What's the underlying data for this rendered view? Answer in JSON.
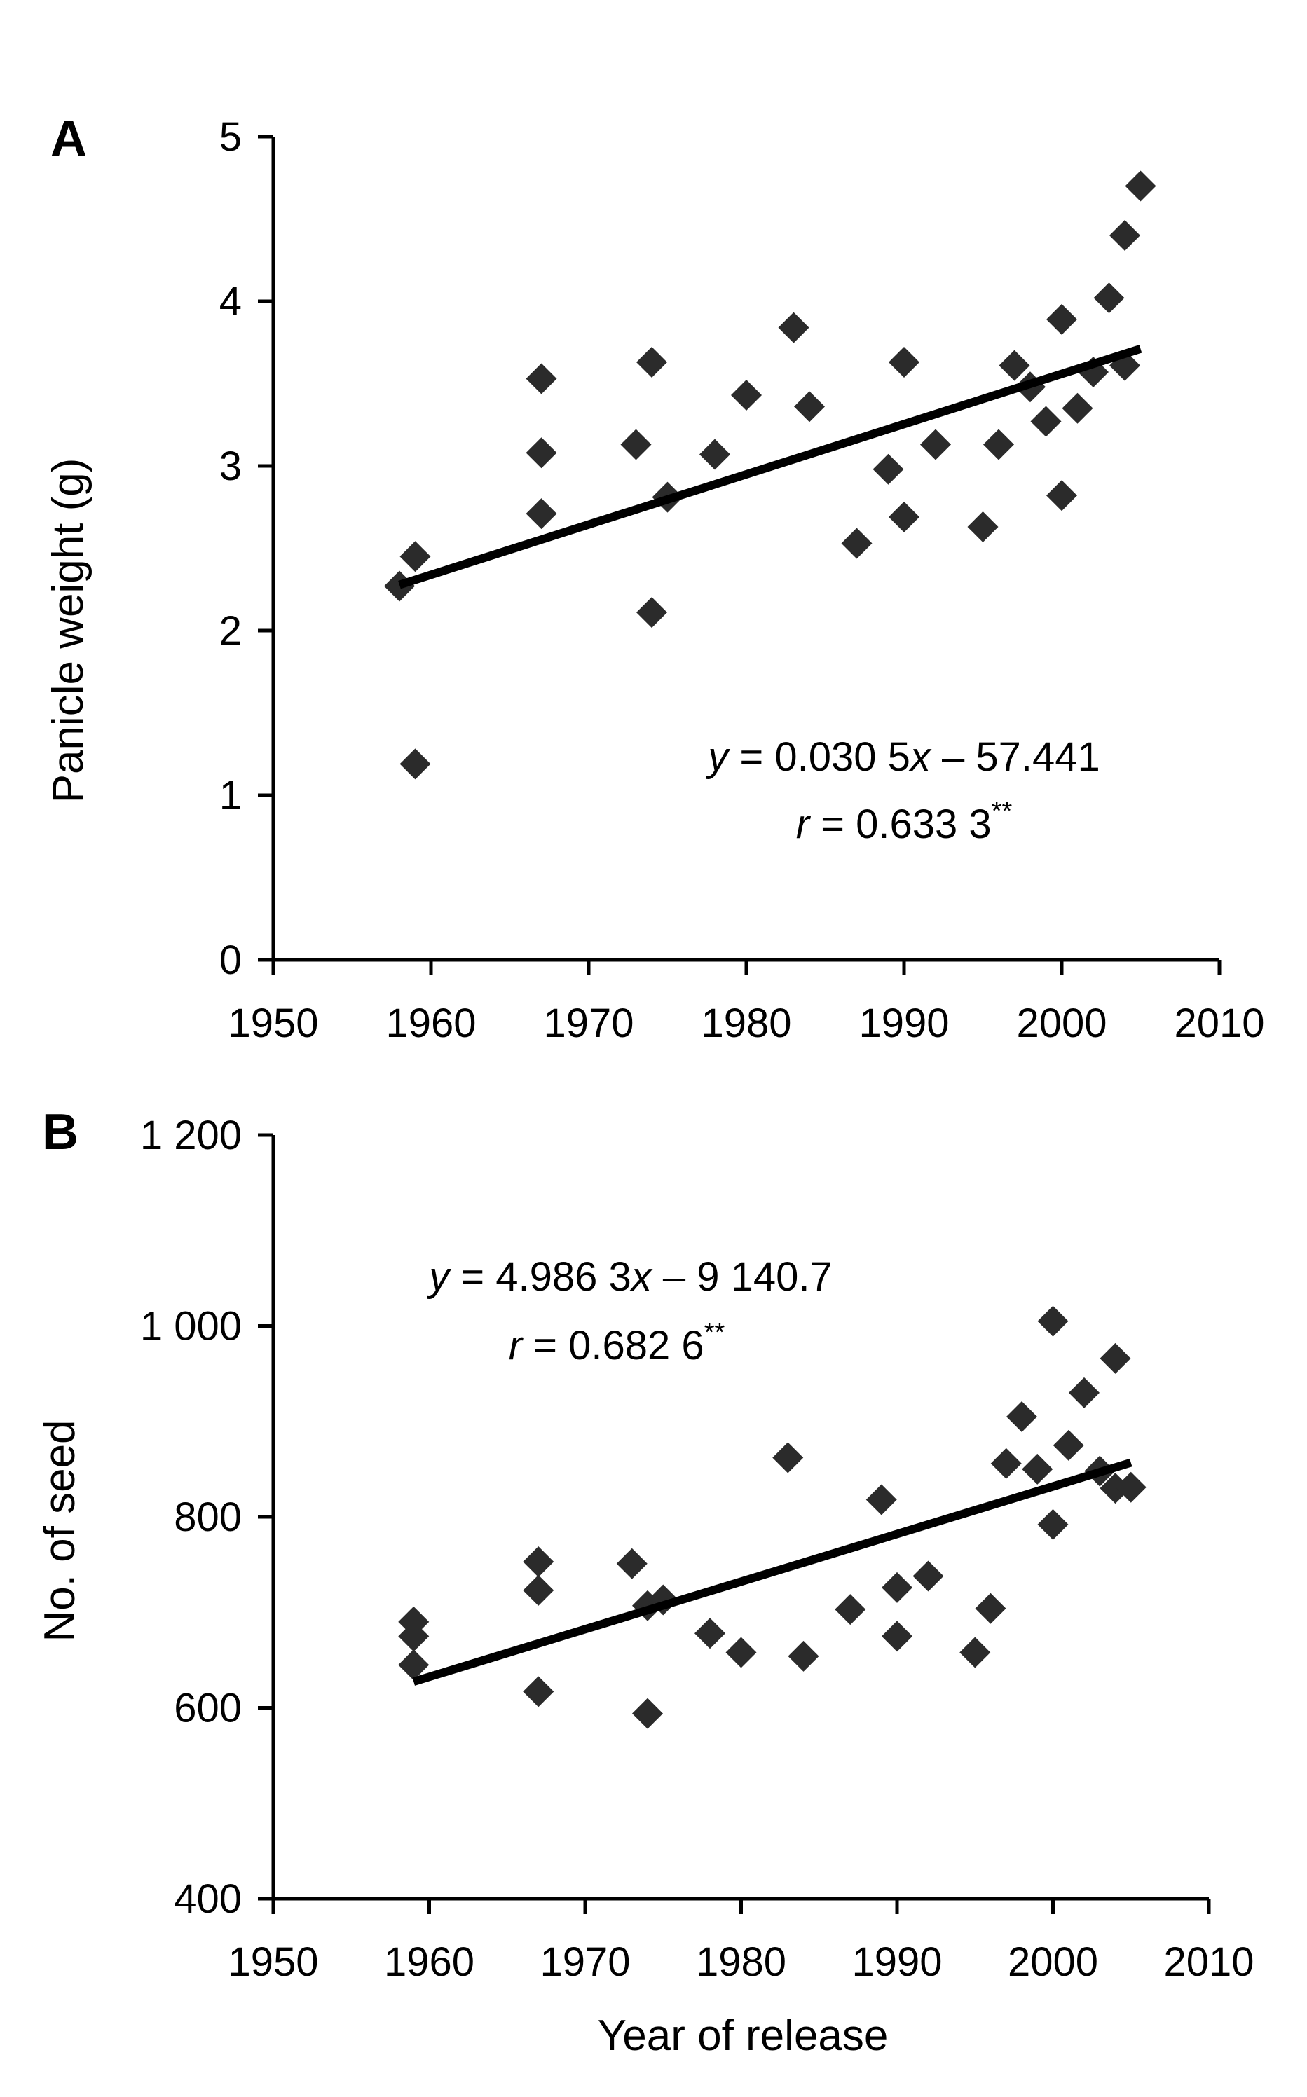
{
  "chart_data": [
    {
      "type": "scatter",
      "panel": "A",
      "title": "",
      "xlabel": "",
      "ylabel": "Panicle weight (g)",
      "xlim": [
        1950,
        2010
      ],
      "ylim": [
        0,
        5
      ],
      "xticks": [
        1950,
        1960,
        1970,
        1980,
        1990,
        2000,
        2010
      ],
      "yticks": [
        0,
        1,
        2,
        3,
        4,
        5
      ],
      "xtick_labels": [
        "1950",
        "1960",
        "1970",
        "1980",
        "1990",
        "2000",
        "2010"
      ],
      "ytick_labels": [
        "0",
        "1",
        "2",
        "3",
        "4",
        "5"
      ],
      "grid": false,
      "marker": "diamond",
      "marker_color": "#2b2b2b",
      "line_color": "#000000",
      "points": [
        {
          "x": 1958,
          "y": 2.27
        },
        {
          "x": 1959,
          "y": 2.45
        },
        {
          "x": 1959,
          "y": 1.19
        },
        {
          "x": 1967,
          "y": 3.53
        },
        {
          "x": 1967,
          "y": 3.08
        },
        {
          "x": 1967,
          "y": 2.71
        },
        {
          "x": 1973,
          "y": 3.13
        },
        {
          "x": 1974,
          "y": 3.63
        },
        {
          "x": 1974,
          "y": 2.11
        },
        {
          "x": 1975,
          "y": 2.81
        },
        {
          "x": 1978,
          "y": 3.07
        },
        {
          "x": 1980,
          "y": 3.43
        },
        {
          "x": 1983,
          "y": 3.84
        },
        {
          "x": 1984,
          "y": 3.36
        },
        {
          "x": 1987,
          "y": 2.53
        },
        {
          "x": 1989,
          "y": 2.98
        },
        {
          "x": 1990,
          "y": 3.63
        },
        {
          "x": 1990,
          "y": 2.69
        },
        {
          "x": 1992,
          "y": 3.13
        },
        {
          "x": 1995,
          "y": 2.63
        },
        {
          "x": 1996,
          "y": 3.13
        },
        {
          "x": 1997,
          "y": 3.61
        },
        {
          "x": 1998,
          "y": 3.48
        },
        {
          "x": 1999,
          "y": 3.27
        },
        {
          "x": 2000,
          "y": 3.89
        },
        {
          "x": 2000,
          "y": 2.82
        },
        {
          "x": 2001,
          "y": 3.35
        },
        {
          "x": 2002,
          "y": 3.57
        },
        {
          "x": 2003,
          "y": 4.02
        },
        {
          "x": 2004,
          "y": 4.4
        },
        {
          "x": 2004,
          "y": 3.61
        },
        {
          "x": 2005,
          "y": 4.7
        }
      ],
      "trendline": {
        "slope": 0.0305,
        "intercept": -57.441,
        "x_range": [
          1958,
          2005
        ]
      },
      "annotations": {
        "equation": {
          "var": "y",
          "rest": " = 0.030 5",
          "xvar": "x",
          "tail": " – 57.441"
        },
        "r": {
          "var": "r",
          "rest": " = 0.633 3",
          "sup": "**"
        }
      }
    },
    {
      "type": "scatter",
      "panel": "B",
      "title": "",
      "xlabel": "Year of release",
      "ylabel": "No. of seed",
      "xlim": [
        1950,
        2010
      ],
      "ylim": [
        400,
        1200
      ],
      "xticks": [
        1950,
        1960,
        1970,
        1980,
        1990,
        2000,
        2010
      ],
      "yticks": [
        400,
        600,
        800,
        1000,
        1200
      ],
      "xtick_labels": [
        "1950",
        "1960",
        "1970",
        "1980",
        "1990",
        "2000",
        "2010"
      ],
      "ytick_labels": [
        "400",
        "600",
        "800",
        "1 000",
        "1 200"
      ],
      "grid": false,
      "marker": "diamond",
      "marker_color": "#2b2b2b",
      "line_color": "#000000",
      "points": [
        {
          "x": 1959,
          "y": 690
        },
        {
          "x": 1959,
          "y": 675
        },
        {
          "x": 1959,
          "y": 645
        },
        {
          "x": 1967,
          "y": 753
        },
        {
          "x": 1967,
          "y": 723
        },
        {
          "x": 1967,
          "y": 617
        },
        {
          "x": 1973,
          "y": 751
        },
        {
          "x": 1974,
          "y": 707
        },
        {
          "x": 1974,
          "y": 594
        },
        {
          "x": 1975,
          "y": 713
        },
        {
          "x": 1978,
          "y": 678
        },
        {
          "x": 1980,
          "y": 658
        },
        {
          "x": 1983,
          "y": 862
        },
        {
          "x": 1984,
          "y": 654
        },
        {
          "x": 1987,
          "y": 703
        },
        {
          "x": 1989,
          "y": 818
        },
        {
          "x": 1990,
          "y": 726
        },
        {
          "x": 1990,
          "y": 675
        },
        {
          "x": 1992,
          "y": 738
        },
        {
          "x": 1995,
          "y": 658
        },
        {
          "x": 1996,
          "y": 704
        },
        {
          "x": 1997,
          "y": 856
        },
        {
          "x": 1998,
          "y": 905
        },
        {
          "x": 1999,
          "y": 850
        },
        {
          "x": 2000,
          "y": 1005
        },
        {
          "x": 2000,
          "y": 792
        },
        {
          "x": 2001,
          "y": 875
        },
        {
          "x": 2002,
          "y": 930
        },
        {
          "x": 2003,
          "y": 848
        },
        {
          "x": 2004,
          "y": 966
        },
        {
          "x": 2004,
          "y": 830
        },
        {
          "x": 2005,
          "y": 831
        }
      ],
      "trendline": {
        "slope": 4.9863,
        "intercept": -9140.7,
        "x_range": [
          1959,
          2005
        ]
      },
      "annotations": {
        "equation": {
          "var": "y",
          "rest": " = 4.986 3",
          "xvar": "x",
          "tail": " – 9 140.7"
        },
        "r": {
          "var": "r",
          "rest": " = 0.682 6",
          "sup": "**"
        }
      }
    }
  ]
}
